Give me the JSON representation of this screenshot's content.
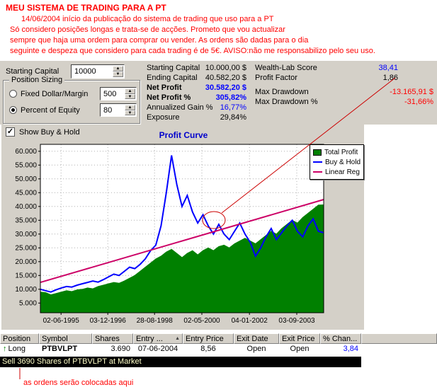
{
  "header": {
    "title": "MEU SISTEMA DE TRADING PARA A PT",
    "text_color": "#ff0000",
    "lines": [
      "14/06/2004 início da publicação do sistema de trading que uso para a PT",
      "Só considero posições longas e trata-se de acções. Prometo que vou actualizar",
      "sempre que haja uma ordem para comprar ou vender. As ordens são dadas para o dia",
      "seguinte e despeza que considero para cada trading é de 5€. AVISO:não me responsabilizo pelo seu uso."
    ]
  },
  "controls": {
    "starting_capital_label": "Starting Capital",
    "starting_capital_value": "10000",
    "position_sizing_label": "Position Sizing",
    "options": [
      {
        "label": "Fixed Dollar/Margin",
        "value": "500",
        "selected": false
      },
      {
        "label": "Percent of Equity",
        "value": "80",
        "selected": true
      }
    ],
    "show_buy_hold_label": "Show Buy & Hold",
    "show_buy_hold_checked": true
  },
  "stats_left": {
    "rows": [
      {
        "label": "Starting Capital",
        "value": "10.000,00 $",
        "color": "#000000"
      },
      {
        "label": "Ending Capital",
        "value": "40.582,20 $",
        "color": "#000000"
      },
      {
        "label": "Net Profit",
        "value": "30.582,20 $",
        "color": "#0000ff"
      },
      {
        "label": "Net Profit %",
        "value": "305,82%",
        "color": "#0000ff"
      },
      {
        "label": "Annualized Gain %",
        "value": "16,77%",
        "color": "#0000ff"
      },
      {
        "label": "Exposure",
        "value": "29,84%",
        "color": "#000000"
      }
    ]
  },
  "stats_right": {
    "rows": [
      {
        "label": "Wealth-Lab Score",
        "value": "38,41",
        "color": "#0000ff"
      },
      {
        "label": "Profit Factor",
        "value": "1,86",
        "color": "#000000"
      },
      {
        "label": "Max Drawdown",
        "value": "-13.165,91 $",
        "color": "#ff0000"
      },
      {
        "label": "Max Drawdown %",
        "value": "-31,66%",
        "color": "#ff0000"
      }
    ]
  },
  "chart_data": {
    "type": "area",
    "title": "Profit Curve",
    "title_color": "#0000cc",
    "ylim": [
      1500,
      62500
    ],
    "grid": true,
    "legend_position": "top-right",
    "y_ticks": [
      {
        "v": 5000,
        "label": "5.000"
      },
      {
        "v": 10000,
        "label": "10.000"
      },
      {
        "v": 15000,
        "label": "15.000"
      },
      {
        "v": 20000,
        "label": "20.000"
      },
      {
        "v": 25000,
        "label": "25.000"
      },
      {
        "v": 30000,
        "label": "30.000"
      },
      {
        "v": 35000,
        "label": "35.000"
      },
      {
        "v": 40000,
        "label": "40.000"
      },
      {
        "v": 45000,
        "label": "45.000"
      },
      {
        "v": 50000,
        "label": "50.000"
      },
      {
        "v": 55000,
        "label": "55.000"
      },
      {
        "v": 60000,
        "label": "60.000"
      }
    ],
    "x_ticks": [
      {
        "pos": 0.073,
        "label": "02-06-1995"
      },
      {
        "pos": 0.238,
        "label": "03-12-1996"
      },
      {
        "pos": 0.403,
        "label": "28-08-1998"
      },
      {
        "pos": 0.57,
        "label": "02-05-2000"
      },
      {
        "pos": 0.738,
        "label": "04-01-2002"
      },
      {
        "pos": 0.905,
        "label": "03-09-2003"
      }
    ],
    "series": [
      {
        "name": "Total Profit",
        "style": "area",
        "color": "#008000",
        "values": [
          9000,
          8800,
          8000,
          8500,
          9000,
          9500,
          9200,
          9800,
          10000,
          10500,
          10200,
          11000,
          11500,
          12000,
          12500,
          12200,
          13000,
          14000,
          15000,
          16500,
          18000,
          19500,
          21000,
          22000,
          23500,
          24500,
          23000,
          21500,
          23000,
          24000,
          22500,
          24000,
          25000,
          24000,
          25500,
          26000,
          25000,
          26500,
          27500,
          28500,
          27500,
          26500,
          28000,
          29500,
          31000,
          30000,
          32000,
          33500,
          35000,
          34000,
          36000,
          37500,
          39000,
          40500,
          40582
        ]
      },
      {
        "name": "Buy & Hold",
        "style": "line",
        "color": "#0000ff",
        "values": [
          10000,
          9500,
          9000,
          9800,
          10500,
          11000,
          10800,
          11500,
          12000,
          12500,
          13000,
          12600,
          13500,
          14500,
          15500,
          15000,
          16500,
          18000,
          17500,
          19000,
          21000,
          24000,
          26000,
          33000,
          45000,
          58500,
          48000,
          40000,
          44000,
          38000,
          34000,
          37000,
          33000,
          30000,
          33500,
          30000,
          28000,
          31000,
          34000,
          30000,
          27000,
          22000,
          25000,
          29000,
          32000,
          28000,
          30500,
          33000,
          35000,
          31000,
          29000,
          33000,
          35500,
          31000,
          30500
        ]
      },
      {
        "name": "Linear Reg",
        "style": "line",
        "color": "#cc0066",
        "values": [
          12500,
          42500
        ]
      }
    ]
  },
  "annotation": {
    "color": "#cc0000"
  },
  "table": {
    "columns": [
      "Position",
      "Symbol",
      "Shares",
      "Entry ...",
      "Entry Price",
      "Exit Date",
      "Exit Price",
      "% Chan..."
    ],
    "sorted_column_index": 3,
    "rows": [
      {
        "cells": [
          "Long",
          "PTBVLPT",
          "3.690",
          "07-06-2004",
          "8,56",
          "Open",
          "Open",
          "3,84"
        ],
        "arrow_color": "#008000",
        "pct_color": "#0000ff"
      }
    ]
  },
  "status_bar": {
    "text": "Sell 3690 Shares of PTBVLPT at Market",
    "bg": "#000000",
    "fg": "#ffffc8"
  },
  "footer_note": "as ordens serão colocadas aqui",
  "icons": {
    "spin_up": "▲",
    "spin_down": "▼",
    "check": "✓",
    "sort_asc": "▲",
    "long_arrow": "↑"
  }
}
